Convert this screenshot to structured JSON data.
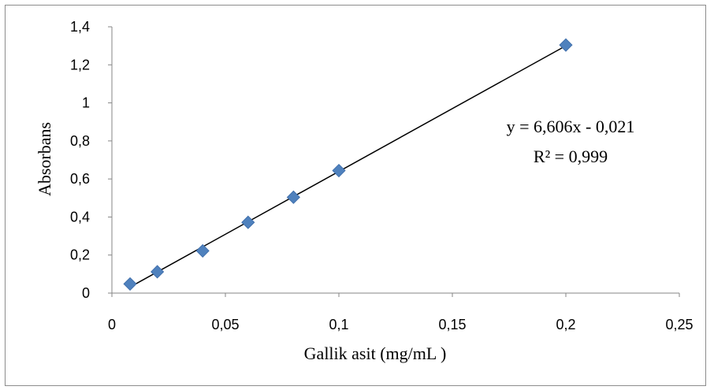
{
  "chart_data": {
    "type": "scatter",
    "xlabel": "Gallik asit (mg/mL )",
    "ylabel": "Absorbans",
    "xlim": [
      0,
      0.25
    ],
    "ylim": [
      0,
      1.4
    ],
    "x_ticks": [
      "0",
      "0,05",
      "0,1",
      "0,15",
      "0,2",
      "0,25"
    ],
    "y_ticks": [
      "0",
      "0,2",
      "0,4",
      "0,6",
      "0,8",
      "1",
      "1,2",
      "1,4"
    ],
    "series": [
      {
        "x": [
          0.008,
          0.02,
          0.04,
          0.06,
          0.08,
          0.1,
          0.2
        ],
        "y": [
          0.048,
          0.112,
          0.222,
          0.372,
          0.504,
          0.644,
          1.304
        ],
        "color": "#4f81bd"
      }
    ],
    "trendline": {
      "slope": 6.606,
      "intercept": -0.021,
      "x_range": [
        0.008,
        0.2
      ],
      "equation": "y = 6,606x - 0,021",
      "r_squared": "R² = 0,999"
    },
    "grid": false,
    "legend": "none"
  }
}
